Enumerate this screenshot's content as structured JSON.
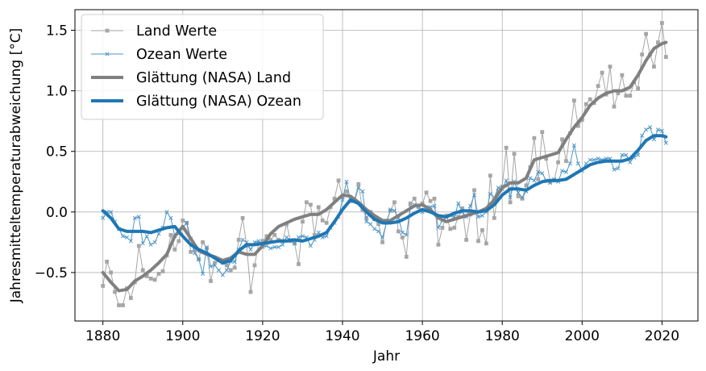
{
  "chart_data": {
    "type": "line",
    "xlabel": "Jahr",
    "ylabel": "Jahresmitteltemperaturabweichung [°C]",
    "xlim": [
      1873,
      2029
    ],
    "ylim": [
      -0.9,
      1.67
    ],
    "xticks": [
      1880,
      1900,
      1920,
      1940,
      1960,
      1980,
      2000,
      2020
    ],
    "yticks": [
      -0.5,
      0.0,
      0.5,
      1.0,
      1.5
    ],
    "ytick_labels": [
      "−0.5",
      "0.0",
      "0.5",
      "1.0",
      "1.5"
    ],
    "grid": true,
    "legend_position": "top-left",
    "colors": {
      "land": "#808080",
      "ocean": "#1f77b4"
    },
    "series": [
      {
        "name": "Land Werte",
        "style": "thin-line-square-markers",
        "color": "#a6a6a6",
        "x": [
          1880,
          1881,
          1882,
          1883,
          1884,
          1885,
          1886,
          1887,
          1888,
          1889,
          1890,
          1891,
          1892,
          1893,
          1894,
          1895,
          1896,
          1897,
          1898,
          1899,
          1900,
          1901,
          1902,
          1903,
          1904,
          1905,
          1906,
          1907,
          1908,
          1909,
          1910,
          1911,
          1912,
          1913,
          1914,
          1915,
          1916,
          1917,
          1918,
          1919,
          1920,
          1921,
          1922,
          1923,
          1924,
          1925,
          1926,
          1927,
          1928,
          1929,
          1930,
          1931,
          1932,
          1933,
          1934,
          1935,
          1936,
          1937,
          1938,
          1939,
          1940,
          1941,
          1942,
          1943,
          1944,
          1945,
          1946,
          1947,
          1948,
          1949,
          1950,
          1951,
          1952,
          1953,
          1954,
          1955,
          1956,
          1957,
          1958,
          1959,
          1960,
          1961,
          1962,
          1963,
          1964,
          1965,
          1966,
          1967,
          1968,
          1969,
          1970,
          1971,
          1972,
          1973,
          1974,
          1975,
          1976,
          1977,
          1978,
          1979,
          1980,
          1981,
          1982,
          1983,
          1984,
          1985,
          1986,
          1987,
          1988,
          1989,
          1990,
          1991,
          1992,
          1993,
          1994,
          1995,
          1996,
          1997,
          1998,
          1999,
          2000,
          2001,
          2002,
          2003,
          2004,
          2005,
          2006,
          2007,
          2008,
          2009,
          2010,
          2011,
          2012,
          2013,
          2014,
          2015,
          2016,
          2017,
          2018,
          2019,
          2020,
          2021
        ],
        "values": [
          -0.61,
          -0.41,
          -0.5,
          -0.66,
          -0.77,
          -0.77,
          -0.63,
          -0.71,
          -0.58,
          -0.28,
          -0.48,
          -0.53,
          -0.55,
          -0.56,
          -0.51,
          -0.49,
          -0.36,
          -0.19,
          -0.31,
          -0.24,
          -0.07,
          -0.09,
          -0.33,
          -0.31,
          -0.39,
          -0.25,
          -0.3,
          -0.57,
          -0.42,
          -0.4,
          -0.42,
          -0.44,
          -0.48,
          -0.46,
          -0.23,
          -0.05,
          -0.28,
          -0.66,
          -0.44,
          -0.26,
          -0.24,
          -0.2,
          -0.23,
          -0.19,
          -0.23,
          -0.24,
          -0.1,
          -0.24,
          -0.26,
          -0.43,
          -0.08,
          0.08,
          0.06,
          -0.19,
          0.04,
          -0.07,
          -0.09,
          0.04,
          0.11,
          0.26,
          0.12,
          0.17,
          0.09,
          0.1,
          0.23,
          0.02,
          -0.05,
          0.0,
          -0.06,
          -0.1,
          -0.25,
          -0.08,
          0.01,
          0.08,
          -0.16,
          -0.21,
          -0.37,
          0.07,
          0.11,
          0.04,
          0.07,
          0.16,
          0.09,
          0.11,
          -0.27,
          -0.13,
          -0.03,
          -0.14,
          -0.13,
          -0.04,
          0.03,
          -0.23,
          -0.02,
          0.18,
          -0.24,
          -0.15,
          -0.26,
          0.3,
          -0.05,
          0.17,
          0.21,
          0.53,
          0.08,
          0.48,
          0.13,
          0.11,
          0.22,
          0.37,
          0.61,
          0.27,
          0.66,
          0.44,
          0.25,
          0.26,
          0.41,
          0.6,
          0.42,
          0.65,
          0.92,
          0.71,
          0.76,
          0.89,
          0.93,
          0.9,
          1.04,
          1.15,
          0.97,
          1.2,
          0.87,
          0.98,
          1.13,
          0.96,
          0.96,
          1.07,
          1.02,
          1.3,
          1.47,
          1.3,
          1.2,
          1.4,
          1.56,
          1.28
        ]
      },
      {
        "name": "Ozean Werte",
        "style": "thin-line-x-markers",
        "color": "#4f96c8",
        "x": [
          1880,
          1881,
          1882,
          1883,
          1884,
          1885,
          1886,
          1887,
          1888,
          1889,
          1890,
          1891,
          1892,
          1893,
          1894,
          1895,
          1896,
          1897,
          1898,
          1899,
          1900,
          1901,
          1902,
          1903,
          1904,
          1905,
          1906,
          1907,
          1908,
          1909,
          1910,
          1911,
          1912,
          1913,
          1914,
          1915,
          1916,
          1917,
          1918,
          1919,
          1920,
          1921,
          1922,
          1923,
          1924,
          1925,
          1926,
          1927,
          1928,
          1929,
          1930,
          1931,
          1932,
          1933,
          1934,
          1935,
          1936,
          1937,
          1938,
          1939,
          1940,
          1941,
          1942,
          1943,
          1944,
          1945,
          1946,
          1947,
          1948,
          1949,
          1950,
          1951,
          1952,
          1953,
          1954,
          1955,
          1956,
          1957,
          1958,
          1959,
          1960,
          1961,
          1962,
          1963,
          1964,
          1965,
          1966,
          1967,
          1968,
          1969,
          1970,
          1971,
          1972,
          1973,
          1974,
          1975,
          1976,
          1977,
          1978,
          1979,
          1980,
          1981,
          1982,
          1983,
          1984,
          1985,
          1986,
          1987,
          1988,
          1989,
          1990,
          1991,
          1992,
          1993,
          1994,
          1995,
          1996,
          1997,
          1998,
          1999,
          2000,
          2001,
          2002,
          2003,
          2004,
          2005,
          2006,
          2007,
          2008,
          2009,
          2010,
          2011,
          2012,
          2013,
          2014,
          2015,
          2016,
          2017,
          2018,
          2019,
          2020,
          2021
        ],
        "values": [
          -0.05,
          0.0,
          0.0,
          -0.08,
          -0.14,
          -0.2,
          -0.21,
          -0.24,
          -0.05,
          -0.04,
          -0.26,
          -0.2,
          -0.27,
          -0.25,
          -0.18,
          -0.13,
          0.0,
          -0.05,
          -0.2,
          -0.18,
          -0.13,
          -0.09,
          -0.22,
          -0.34,
          -0.39,
          -0.51,
          -0.29,
          -0.45,
          -0.44,
          -0.48,
          -0.52,
          -0.48,
          -0.41,
          -0.41,
          -0.31,
          -0.23,
          -0.25,
          -0.31,
          -0.25,
          -0.24,
          -0.29,
          -0.28,
          -0.3,
          -0.29,
          -0.29,
          -0.27,
          -0.21,
          -0.23,
          -0.26,
          -0.21,
          -0.2,
          -0.21,
          -0.28,
          -0.23,
          -0.17,
          -0.21,
          -0.2,
          -0.13,
          -0.09,
          -0.04,
          0.1,
          0.25,
          0.09,
          0.09,
          0.2,
          0.17,
          -0.08,
          -0.1,
          -0.14,
          -0.16,
          -0.21,
          -0.09,
          0.02,
          0.01,
          -0.05,
          -0.17,
          -0.19,
          0.04,
          0.06,
          0.05,
          0.0,
          0.04,
          0.04,
          0.05,
          -0.13,
          -0.07,
          -0.04,
          -0.03,
          -0.04,
          0.07,
          0.0,
          -0.04,
          0.05,
          0.14,
          -0.04,
          -0.03,
          0.0,
          0.15,
          0.12,
          0.2,
          0.19,
          0.26,
          0.12,
          0.25,
          0.16,
          0.12,
          0.17,
          0.28,
          0.26,
          0.33,
          0.32,
          0.26,
          0.24,
          0.27,
          0.25,
          0.34,
          0.33,
          0.4,
          0.55,
          0.4,
          0.34,
          0.4,
          0.43,
          0.43,
          0.44,
          0.43,
          0.44,
          0.44,
          0.35,
          0.36,
          0.47,
          0.47,
          0.41,
          0.45,
          0.47,
          0.63,
          0.68,
          0.7,
          0.6,
          0.68,
          0.67,
          0.57
        ]
      },
      {
        "name": "Glättung (NASA) Land",
        "style": "thick-line",
        "color": "#808080",
        "x": [
          1880,
          1882,
          1884,
          1886,
          1888,
          1890,
          1892,
          1894,
          1896,
          1898,
          1900,
          1902,
          1904,
          1906,
          1908,
          1910,
          1912,
          1914,
          1916,
          1918,
          1920,
          1922,
          1924,
          1926,
          1928,
          1930,
          1932,
          1934,
          1936,
          1938,
          1940,
          1942,
          1944,
          1946,
          1948,
          1950,
          1952,
          1954,
          1956,
          1958,
          1960,
          1962,
          1964,
          1966,
          1968,
          1970,
          1972,
          1974,
          1976,
          1978,
          1980,
          1982,
          1984,
          1986,
          1988,
          1990,
          1992,
          1994,
          1996,
          1998,
          2000,
          2002,
          2004,
          2006,
          2008,
          2010,
          2012,
          2014,
          2016,
          2018,
          2020,
          2021
        ],
        "values": [
          -0.5,
          -0.58,
          -0.65,
          -0.64,
          -0.57,
          -0.53,
          -0.48,
          -0.42,
          -0.35,
          -0.2,
          -0.12,
          -0.22,
          -0.32,
          -0.35,
          -0.37,
          -0.4,
          -0.38,
          -0.33,
          -0.35,
          -0.35,
          -0.28,
          -0.18,
          -0.12,
          -0.09,
          -0.06,
          -0.04,
          -0.02,
          -0.02,
          0.02,
          0.08,
          0.14,
          0.13,
          0.08,
          0.02,
          -0.03,
          -0.07,
          -0.07,
          -0.03,
          0.01,
          0.05,
          0.06,
          0.02,
          -0.05,
          -0.08,
          -0.06,
          -0.04,
          -0.02,
          0.0,
          0.03,
          0.1,
          0.2,
          0.24,
          0.24,
          0.28,
          0.43,
          0.45,
          0.47,
          0.49,
          0.6,
          0.7,
          0.78,
          0.88,
          0.94,
          0.98,
          1.0,
          1.0,
          1.03,
          1.13,
          1.25,
          1.35,
          1.39,
          1.4
        ]
      },
      {
        "name": "Glättung (NASA) Ozean",
        "style": "thick-line",
        "color": "#1f77b4",
        "x": [
          1880,
          1882,
          1884,
          1886,
          1888,
          1890,
          1892,
          1894,
          1896,
          1898,
          1900,
          1902,
          1904,
          1906,
          1908,
          1910,
          1912,
          1914,
          1916,
          1918,
          1920,
          1922,
          1924,
          1926,
          1928,
          1930,
          1932,
          1934,
          1936,
          1938,
          1940,
          1942,
          1944,
          1946,
          1948,
          1950,
          1952,
          1954,
          1956,
          1958,
          1960,
          1962,
          1964,
          1966,
          1968,
          1970,
          1972,
          1974,
          1976,
          1978,
          1980,
          1982,
          1984,
          1986,
          1988,
          1990,
          1992,
          1994,
          1996,
          1998,
          2000,
          2002,
          2004,
          2006,
          2008,
          2010,
          2012,
          2014,
          2016,
          2018,
          2020,
          2021
        ],
        "values": [
          0.01,
          -0.05,
          -0.14,
          -0.16,
          -0.16,
          -0.16,
          -0.17,
          -0.15,
          -0.13,
          -0.12,
          -0.2,
          -0.27,
          -0.31,
          -0.34,
          -0.38,
          -0.42,
          -0.4,
          -0.32,
          -0.27,
          -0.27,
          -0.26,
          -0.25,
          -0.24,
          -0.24,
          -0.23,
          -0.24,
          -0.22,
          -0.2,
          -0.17,
          -0.08,
          0.02,
          0.1,
          0.07,
          0.0,
          -0.06,
          -0.09,
          -0.09,
          -0.08,
          -0.05,
          -0.01,
          0.02,
          0.0,
          -0.03,
          -0.04,
          -0.01,
          0.01,
          0.01,
          0.0,
          0.01,
          0.06,
          0.14,
          0.19,
          0.19,
          0.18,
          0.22,
          0.25,
          0.26,
          0.26,
          0.27,
          0.31,
          0.35,
          0.39,
          0.41,
          0.42,
          0.42,
          0.42,
          0.44,
          0.51,
          0.59,
          0.63,
          0.63,
          0.62
        ]
      }
    ]
  }
}
